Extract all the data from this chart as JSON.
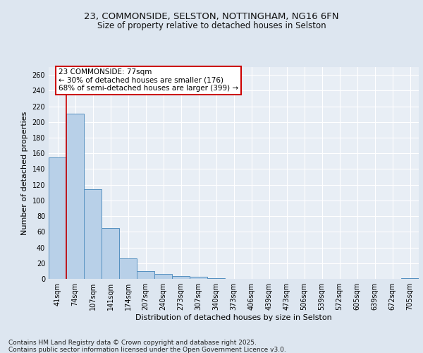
{
  "title_line1": "23, COMMONSIDE, SELSTON, NOTTINGHAM, NG16 6FN",
  "title_line2": "Size of property relative to detached houses in Selston",
  "xlabel": "Distribution of detached houses by size in Selston",
  "ylabel": "Number of detached properties",
  "categories": [
    "41sqm",
    "74sqm",
    "107sqm",
    "141sqm",
    "174sqm",
    "207sqm",
    "240sqm",
    "273sqm",
    "307sqm",
    "340sqm",
    "373sqm",
    "406sqm",
    "439sqm",
    "473sqm",
    "506sqm",
    "539sqm",
    "572sqm",
    "605sqm",
    "639sqm",
    "672sqm",
    "705sqm"
  ],
  "values": [
    155,
    211,
    114,
    65,
    26,
    10,
    6,
    4,
    3,
    1,
    0,
    0,
    0,
    0,
    0,
    0,
    0,
    0,
    0,
    0,
    1
  ],
  "bar_color": "#b8d0e8",
  "bar_edge_color": "#5590c0",
  "red_line_x": 0.5,
  "red_line_color": "#cc0000",
  "annotation_text": "23 COMMONSIDE: 77sqm\n← 30% of detached houses are smaller (176)\n68% of semi-detached houses are larger (399) →",
  "annotation_box_color": "#cc0000",
  "ylim": [
    0,
    270
  ],
  "yticks": [
    0,
    20,
    40,
    60,
    80,
    100,
    120,
    140,
    160,
    180,
    200,
    220,
    240,
    260
  ],
  "bg_color": "#dde6f0",
  "plot_bg_color": "#e8eef5",
  "grid_color": "#ffffff",
  "footer_text": "Contains HM Land Registry data © Crown copyright and database right 2025.\nContains public sector information licensed under the Open Government Licence v3.0.",
  "title_fontsize": 9.5,
  "subtitle_fontsize": 8.5,
  "axis_label_fontsize": 8,
  "tick_fontsize": 7,
  "annotation_fontsize": 7.5,
  "footer_fontsize": 6.5
}
